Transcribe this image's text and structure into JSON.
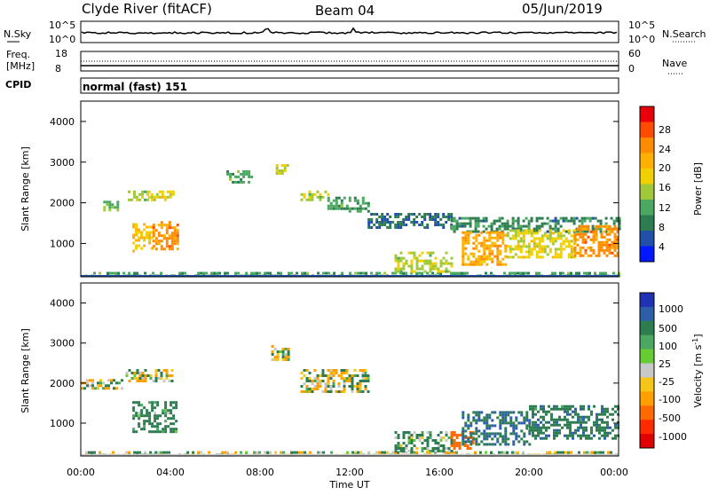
{
  "header": {
    "station": "Clyde River (fitACF)",
    "beam": "Beam 04",
    "date": "05/Jun/2019"
  },
  "noise_panel": {
    "left_label": "N.Sky",
    "right_label": "N.Search",
    "left_ticks": [
      "10^5",
      "10^0"
    ],
    "right_ticks": [
      "10^5",
      "10^0"
    ]
  },
  "freq_panel": {
    "left_label_1": "Freq.",
    "left_label_2": "[MHz]",
    "right_label": "Nave",
    "left_ticks": [
      "18",
      "8"
    ],
    "right_ticks": [
      "60",
      "0"
    ]
  },
  "cpid_panel": {
    "label": "CPID",
    "mode_text": "normal (fast) 151"
  },
  "axes": {
    "ylabel": "Slant Range [km]",
    "xlabel": "Time UT",
    "y_ticks": [
      "4000",
      "3000",
      "2000",
      "1000"
    ],
    "x_ticks": [
      "00:00",
      "04:00",
      "08:00",
      "12:00",
      "16:00",
      "20:00",
      "00:00"
    ]
  },
  "power_colorbar": {
    "title": "Power [dB]",
    "ticks": [
      "28",
      "24",
      "20",
      "16",
      "12",
      "8",
      "4"
    ],
    "colors": [
      "#e8000b",
      "#ff4b00",
      "#ff8c00",
      "#ffb000",
      "#f0d000",
      "#a0c838",
      "#4aa860",
      "#2e7d50",
      "#2050a8",
      "#0018ff"
    ]
  },
  "velocity_colorbar": {
    "title": "Velocity [m s^-1]",
    "ticks": [
      "1000",
      "500",
      "100",
      "25",
      "-25",
      "-100",
      "-500",
      "-1000"
    ],
    "colors": [
      "#1f32b4",
      "#2c5fa8",
      "#2e7d50",
      "#4aa860",
      "#66cc33",
      "#c8c8c8",
      "#f5c518",
      "#ffa000",
      "#ff6a00",
      "#ff2a00",
      "#e00000"
    ]
  },
  "chart_data": [
    {
      "type": "heatmap",
      "title": "Power [dB]",
      "xlabel": "Time UT",
      "ylabel": "Slant Range [km]",
      "xlim": [
        0,
        24
      ],
      "ylim": [
        180,
        4500
      ],
      "clim": [
        0,
        30
      ],
      "regions": [
        {
          "t0": 0.2,
          "t1": 24,
          "r0": 180,
          "r1": 300,
          "value": 10
        },
        {
          "t0": 1.0,
          "t1": 1.8,
          "r0": 1850,
          "r1": 2050,
          "value": 12
        },
        {
          "t0": 2.1,
          "t1": 3.0,
          "r0": 2050,
          "r1": 2300,
          "value": 14
        },
        {
          "t0": 3.0,
          "t1": 4.1,
          "r0": 2100,
          "r1": 2300,
          "value": 16
        },
        {
          "t0": 2.3,
          "t1": 3.2,
          "r0": 800,
          "r1": 1500,
          "value": 18
        },
        {
          "t0": 3.2,
          "t1": 4.3,
          "r0": 850,
          "r1": 1550,
          "value": 22
        },
        {
          "t0": 6.5,
          "t1": 7.6,
          "r0": 2500,
          "r1": 2800,
          "value": 10
        },
        {
          "t0": 8.7,
          "t1": 9.2,
          "r0": 2750,
          "r1": 2950,
          "value": 14
        },
        {
          "t0": 9.8,
          "t1": 11.0,
          "r0": 2100,
          "r1": 2300,
          "value": 14
        },
        {
          "t0": 11.0,
          "t1": 12.8,
          "r0": 1800,
          "r1": 2150,
          "value": 10
        },
        {
          "t0": 12.8,
          "t1": 16.5,
          "r0": 1400,
          "r1": 1750,
          "value": 6
        },
        {
          "t0": 16.5,
          "t1": 24,
          "r0": 1300,
          "r1": 1650,
          "value": 8
        },
        {
          "t0": 14.0,
          "t1": 16.5,
          "r0": 300,
          "r1": 800,
          "value": 14
        },
        {
          "t0": 17.0,
          "t1": 19.0,
          "r0": 450,
          "r1": 1300,
          "value": 20
        },
        {
          "t0": 19.0,
          "t1": 22.0,
          "r0": 650,
          "r1": 1350,
          "value": 16
        },
        {
          "t0": 22.0,
          "t1": 24.0,
          "r0": 700,
          "r1": 1450,
          "value": 22
        }
      ]
    },
    {
      "type": "heatmap",
      "title": "Velocity [m s^-1]",
      "xlabel": "Time UT",
      "ylabel": "Slant Range [km]",
      "xlim": [
        0,
        24
      ],
      "ylim": [
        180,
        4500
      ],
      "clim": [
        -1000,
        1000
      ],
      "regions": [
        {
          "t0": 0.2,
          "t1": 24,
          "r0": 180,
          "r1": 300,
          "value": 0
        },
        {
          "t0": 0.0,
          "t1": 1.8,
          "r0": 1850,
          "r1": 2100,
          "value": 0
        },
        {
          "t0": 2.0,
          "t1": 4.1,
          "r0": 2050,
          "r1": 2350,
          "value": 0
        },
        {
          "t0": 2.3,
          "t1": 4.3,
          "r0": 800,
          "r1": 1550,
          "value": 150
        },
        {
          "t0": 8.5,
          "t1": 9.3,
          "r0": 2600,
          "r1": 2950,
          "value": 0
        },
        {
          "t0": 9.8,
          "t1": 12.8,
          "r0": 1800,
          "r1": 2350,
          "value": 0
        },
        {
          "t0": 14.0,
          "t1": 16.5,
          "r0": 300,
          "r1": 800,
          "value": 100
        },
        {
          "t0": 16.5,
          "t1": 17.5,
          "r0": 350,
          "r1": 800,
          "value": -500
        },
        {
          "t0": 17.0,
          "t1": 20.0,
          "r0": 500,
          "r1": 1300,
          "value": 300
        },
        {
          "t0": 20.0,
          "t1": 24.0,
          "r0": 600,
          "r1": 1450,
          "value": 200
        }
      ]
    }
  ]
}
